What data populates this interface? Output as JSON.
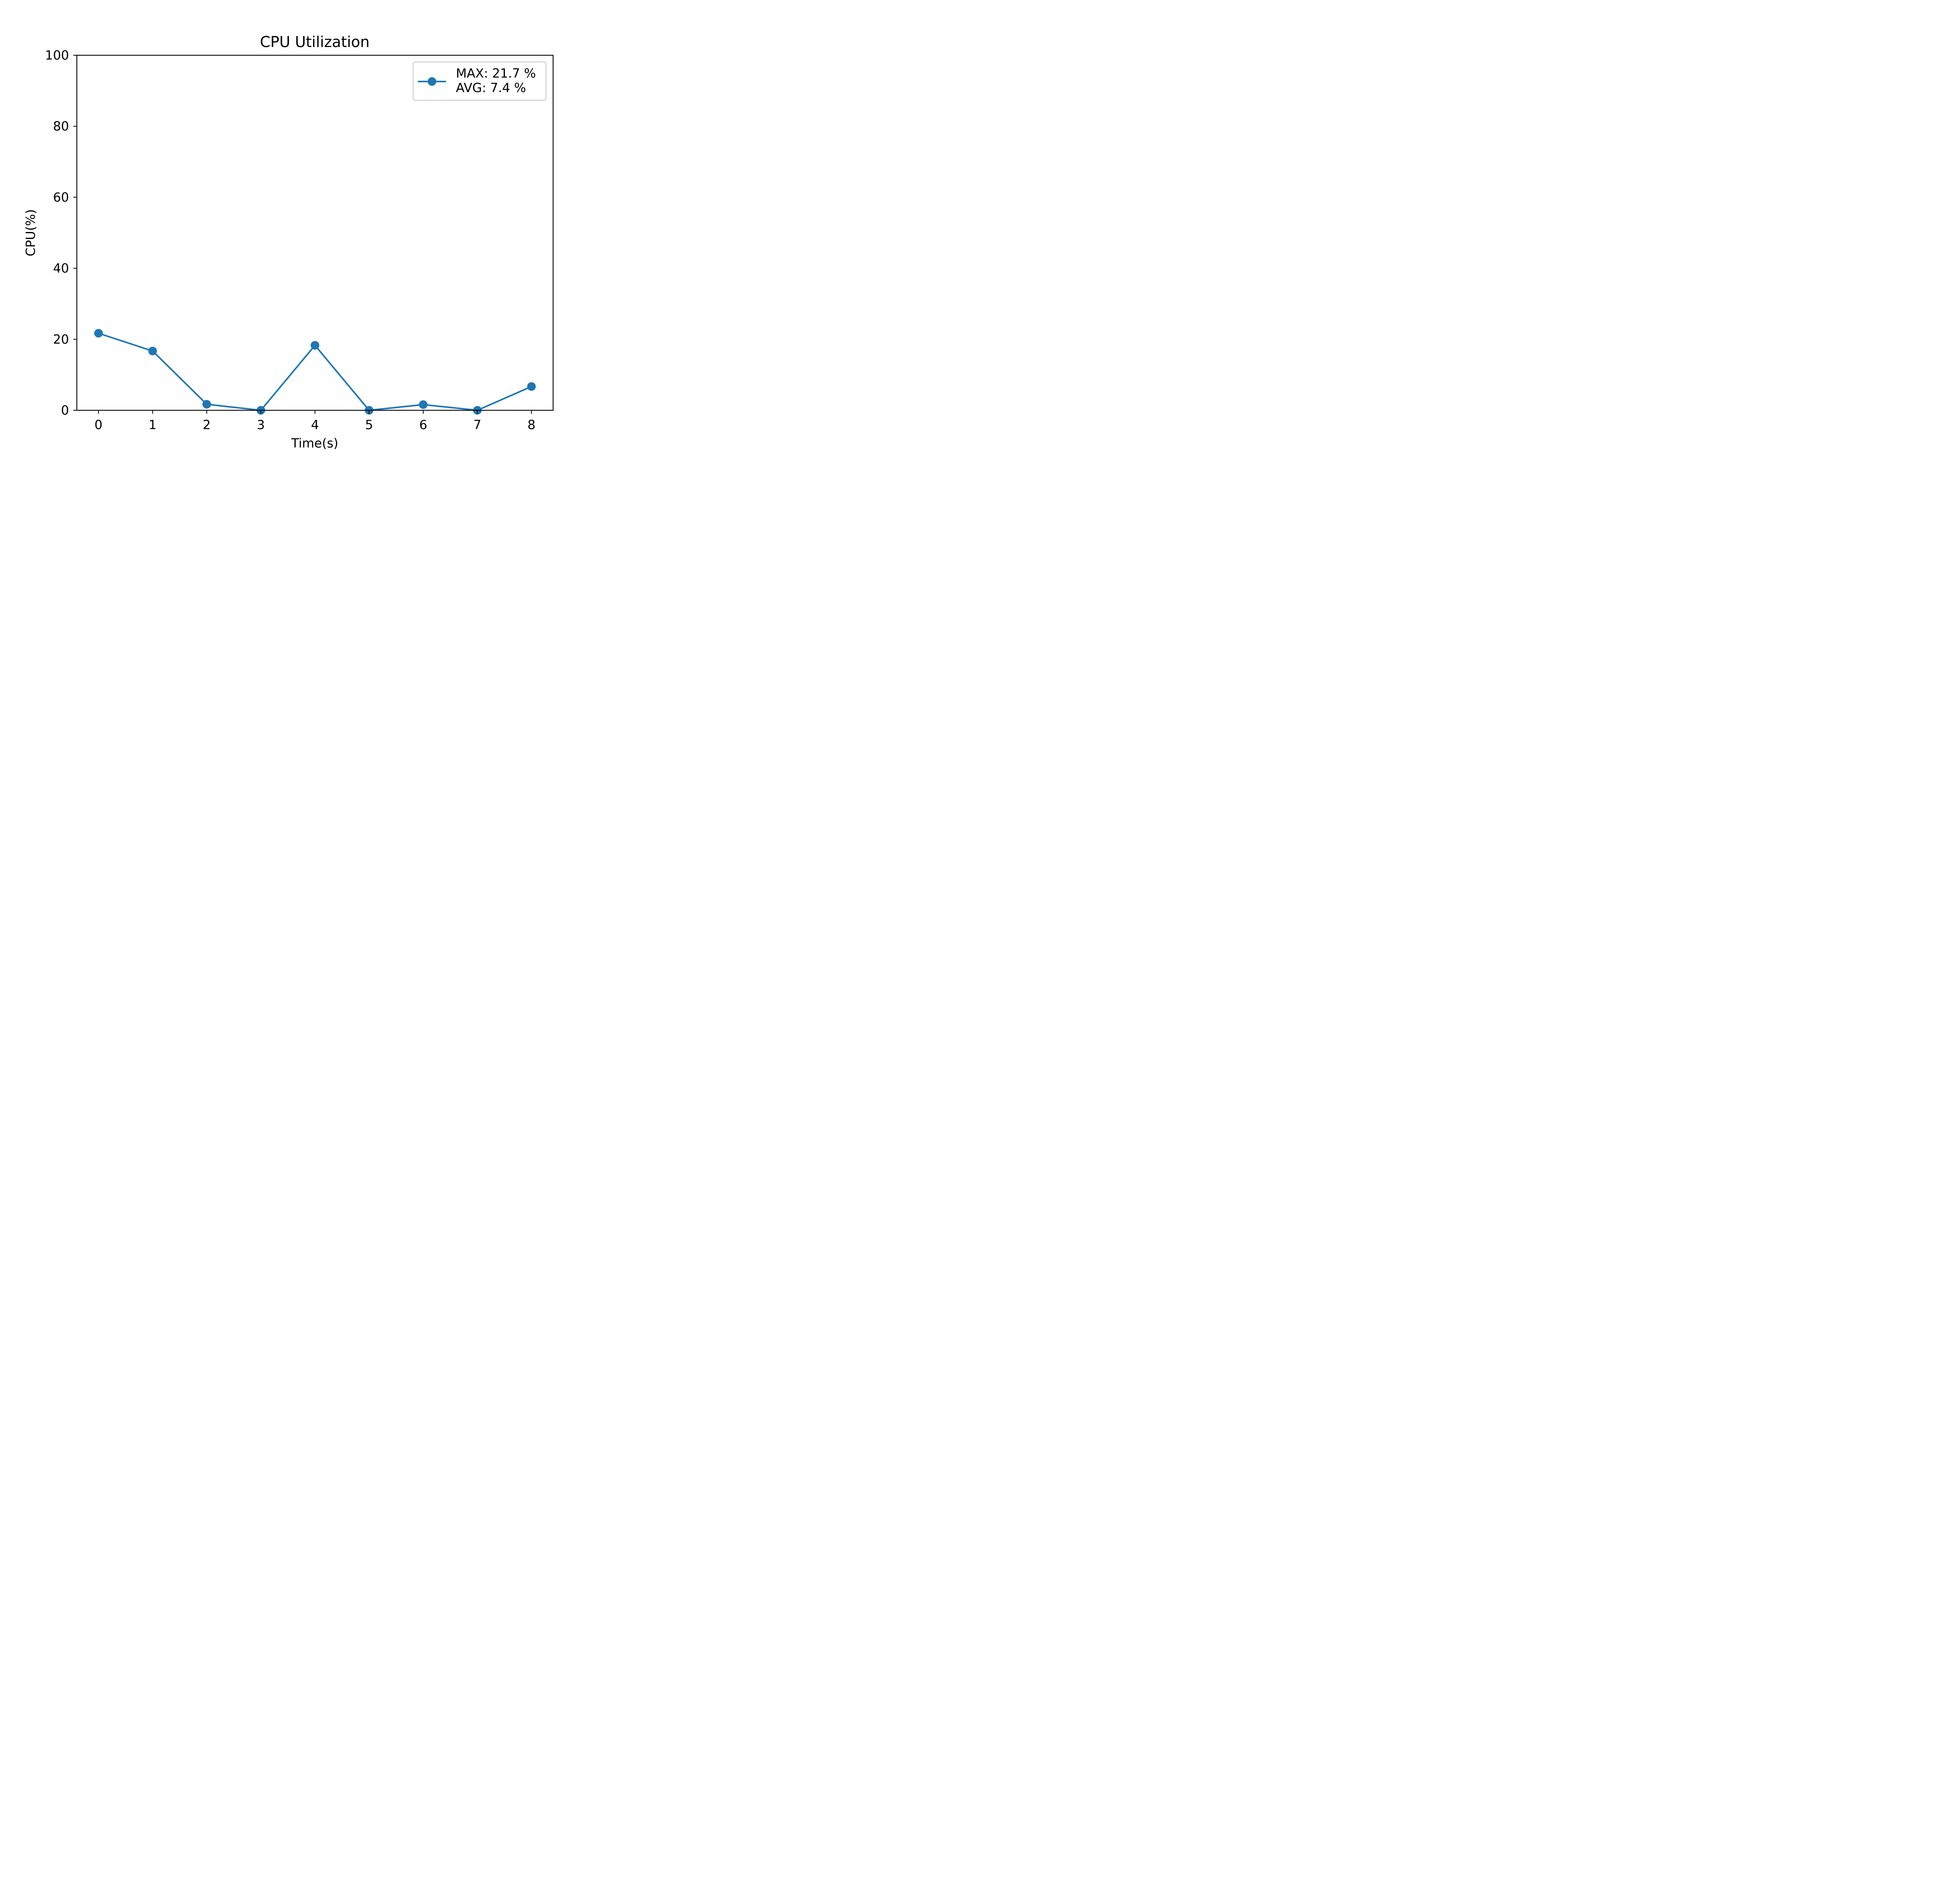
{
  "chart_data": {
    "type": "line",
    "title": "CPU Utilization",
    "xlabel": "Time(s)",
    "ylabel": "CPU(%)",
    "xlim": [
      -0.4,
      8.4
    ],
    "ylim": [
      0,
      100
    ],
    "xticks": [
      0,
      1,
      2,
      3,
      4,
      5,
      6,
      7,
      8
    ],
    "yticks": [
      0,
      20,
      40,
      60,
      80,
      100
    ],
    "grid": false,
    "legend": {
      "placement": "top-right",
      "lines": [
        "MAX: 21.7 %",
        "AVG: 7.4 %"
      ]
    },
    "series": [
      {
        "color": "#1f77b4",
        "marker": "circle",
        "x": [
          0,
          1,
          2,
          3,
          4,
          5,
          6,
          7,
          8
        ],
        "y": [
          21.7,
          16.7,
          1.7,
          0.0,
          18.3,
          0.0,
          1.6,
          0.0,
          6.7
        ]
      }
    ]
  }
}
